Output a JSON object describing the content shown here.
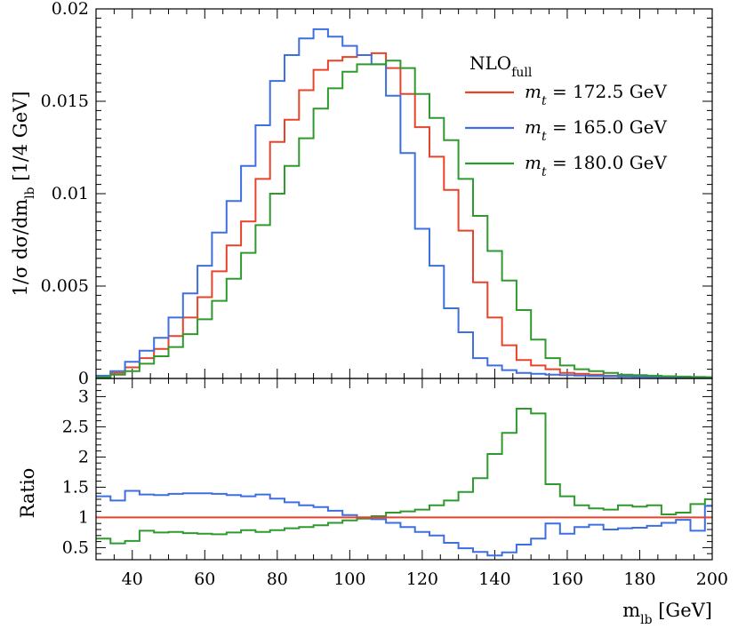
{
  "chart_data": [
    {
      "type": "line",
      "panel": "main",
      "ylabel": "1/σ dσ/dm_lb [1/4 GeV]",
      "xlim": [
        30,
        200
      ],
      "ylim": [
        0,
        0.02
      ],
      "yticks": [
        0,
        0.005,
        0.01,
        0.015,
        0.02
      ],
      "ytick_labels": [
        "0",
        "0.005",
        "0.01",
        "0.015",
        "0.02"
      ],
      "bin_edges": [
        30,
        34,
        38,
        42,
        46,
        50,
        54,
        58,
        62,
        66,
        70,
        74,
        78,
        82,
        86,
        90,
        94,
        98,
        102,
        106,
        110,
        114,
        118,
        122,
        126,
        130,
        134,
        138,
        142,
        146,
        150,
        154,
        158,
        162,
        166,
        170,
        174,
        178,
        182,
        186,
        190,
        194,
        198,
        200
      ],
      "legend_title": "NLO_full",
      "legend_position": "top-right",
      "series": [
        {
          "name": "m_t = 172.5 GeV",
          "color": "#e8432a",
          "values": [
            0.0001,
            0.0003,
            0.0006,
            0.0011,
            0.0016,
            0.0023,
            0.0033,
            0.0044,
            0.0058,
            0.0072,
            0.0085,
            0.0108,
            0.0128,
            0.014,
            0.0156,
            0.0167,
            0.0172,
            0.0174,
            0.0175,
            0.0176,
            0.0168,
            0.0154,
            0.0136,
            0.012,
            0.0102,
            0.008,
            0.0052,
            0.0033,
            0.0018,
            0.001,
            0.0007,
            0.0005,
            0.0003,
            0.00025,
            0.0002,
            0.00015,
            0.00012,
            0.0001,
            0.0001,
            8e-05,
            7e-05,
            6e-05,
            5e-05
          ]
        },
        {
          "name": "m_t = 165.0 GeV",
          "color": "#3d6fe0",
          "values": [
            0.00015,
            0.0004,
            0.0009,
            0.0015,
            0.0022,
            0.0033,
            0.0046,
            0.0061,
            0.0079,
            0.0096,
            0.0115,
            0.0137,
            0.0161,
            0.0175,
            0.0184,
            0.0189,
            0.0185,
            0.018,
            0.0175,
            0.017,
            0.0153,
            0.0122,
            0.0081,
            0.0061,
            0.0038,
            0.0025,
            0.0011,
            0.0007,
            0.00045,
            0.0003,
            0.00025,
            0.0002,
            0.00018,
            0.00016,
            0.00014,
            0.00012,
            0.0001,
            9e-05,
            8e-05,
            8e-05,
            7e-05,
            6e-05,
            5e-05
          ]
        },
        {
          "name": "m_t = 180.0 GeV",
          "color": "#2e9a2e",
          "values": [
            7e-05,
            0.0002,
            0.0004,
            0.0008,
            0.0012,
            0.0017,
            0.0024,
            0.0032,
            0.0042,
            0.0054,
            0.0068,
            0.0083,
            0.01,
            0.0115,
            0.013,
            0.0146,
            0.0157,
            0.0166,
            0.017,
            0.017,
            0.0172,
            0.0168,
            0.0154,
            0.0141,
            0.0129,
            0.0108,
            0.0088,
            0.0069,
            0.0053,
            0.0037,
            0.0021,
            0.0011,
            0.0007,
            0.0005,
            0.0004,
            0.0003,
            0.0002,
            0.00018,
            0.00015,
            0.00012,
            0.0001,
            8e-05,
            7e-05
          ]
        }
      ]
    },
    {
      "type": "line",
      "panel": "ratio",
      "ylabel": "Ratio",
      "xlabel": "m_lb [GeV]",
      "xlim": [
        30,
        200
      ],
      "ylim": [
        0.3,
        3.3
      ],
      "yticks": [
        0.5,
        1,
        1.5,
        2,
        2.5,
        3
      ],
      "ytick_labels": [
        "0.5",
        "1",
        "1.5",
        "2",
        "2.5",
        "3"
      ],
      "xticks": [
        40,
        60,
        80,
        100,
        120,
        140,
        160,
        180,
        200
      ],
      "xtick_labels": [
        "40",
        "60",
        "80",
        "100",
        "120",
        "140",
        "160",
        "180",
        "200"
      ],
      "bin_edges": [
        30,
        34,
        38,
        42,
        46,
        50,
        54,
        58,
        62,
        66,
        70,
        74,
        78,
        82,
        86,
        90,
        94,
        98,
        102,
        106,
        110,
        114,
        118,
        122,
        126,
        130,
        134,
        138,
        142,
        146,
        150,
        154,
        158,
        162,
        166,
        170,
        174,
        178,
        182,
        186,
        190,
        194,
        198,
        200
      ],
      "series": [
        {
          "name": "m_t = 172.5 GeV",
          "color": "#e8432a",
          "values": [
            1,
            1,
            1,
            1,
            1,
            1,
            1,
            1,
            1,
            1,
            1,
            1,
            1,
            1,
            1,
            1,
            1,
            1,
            1,
            1,
            1,
            1,
            1,
            1,
            1,
            1,
            1,
            1,
            1,
            1,
            1,
            1,
            1,
            1,
            1,
            1,
            1,
            1,
            1,
            1,
            1,
            1,
            1
          ]
        },
        {
          "name": "m_t = 165.0 GeV",
          "color": "#3d6fe0",
          "values": [
            1.35,
            1.28,
            1.44,
            1.38,
            1.37,
            1.39,
            1.4,
            1.4,
            1.39,
            1.37,
            1.35,
            1.38,
            1.31,
            1.25,
            1.2,
            1.17,
            1.11,
            1.04,
            1.0,
            0.97,
            0.91,
            0.84,
            0.76,
            0.7,
            0.58,
            0.49,
            0.43,
            0.37,
            0.42,
            0.55,
            0.65,
            0.9,
            0.73,
            0.84,
            0.88,
            0.8,
            0.82,
            0.83,
            0.86,
            0.91,
            0.96,
            0.78,
            1.19
          ]
        },
        {
          "name": "m_t = 180.0 GeV",
          "color": "#2e9a2e",
          "values": [
            0.65,
            0.57,
            0.61,
            0.78,
            0.75,
            0.76,
            0.74,
            0.73,
            0.72,
            0.75,
            0.79,
            0.76,
            0.79,
            0.82,
            0.84,
            0.87,
            0.91,
            0.95,
            0.98,
            1.02,
            1.08,
            1.1,
            1.13,
            1.2,
            1.28,
            1.42,
            1.65,
            2.05,
            2.4,
            2.8,
            2.72,
            1.55,
            1.35,
            1.2,
            1.15,
            1.13,
            1.2,
            1.18,
            1.2,
            1.05,
            1.08,
            1.22,
            1.3
          ]
        }
      ]
    }
  ]
}
